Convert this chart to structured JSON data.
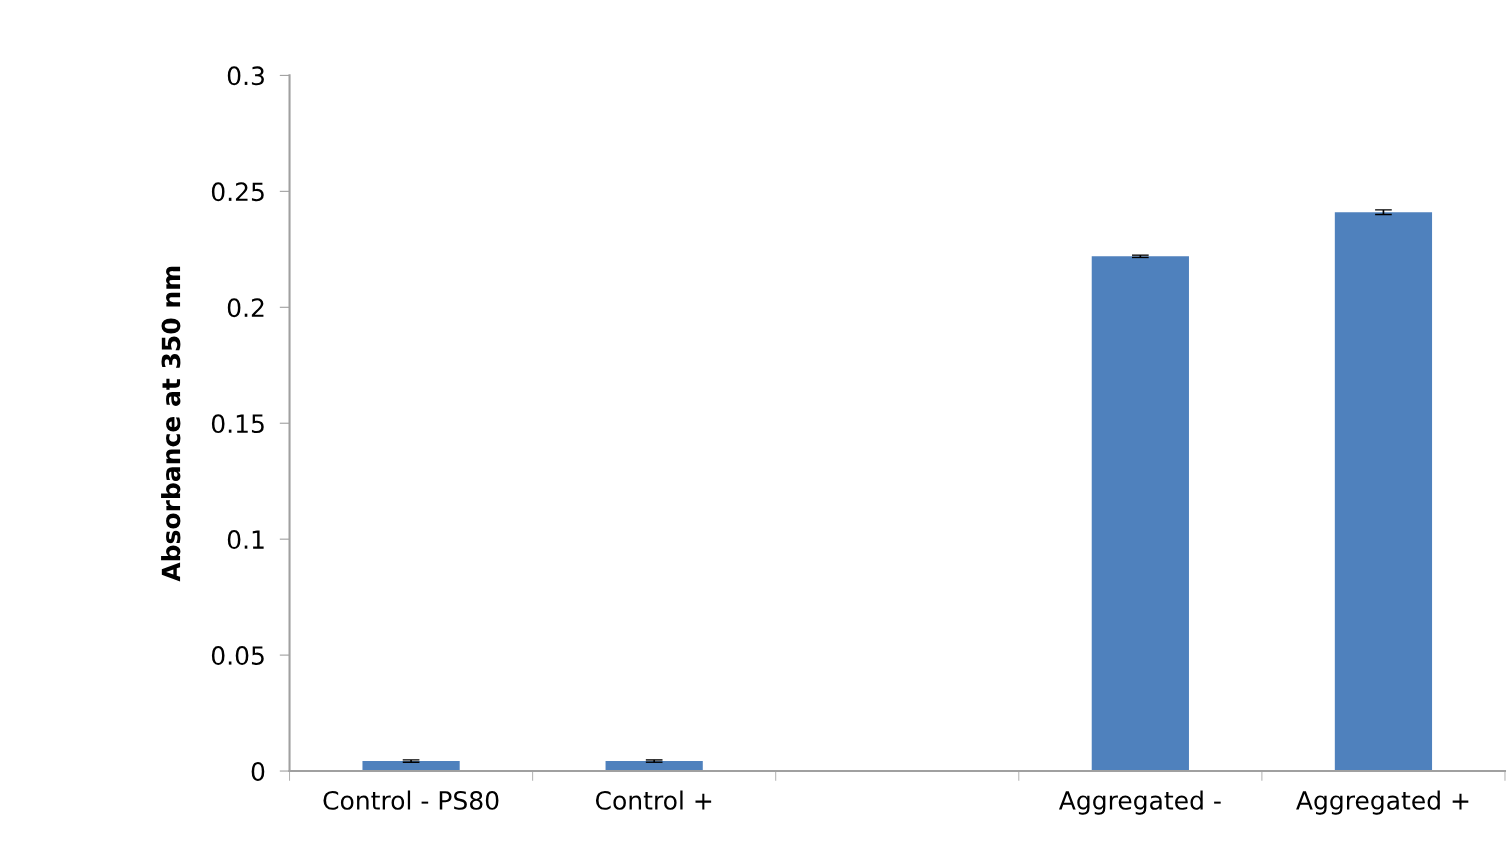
{
  "chart_data": {
    "type": "bar",
    "ylabel": "Absorbance at 350 nm",
    "categories": [
      "Control - PS80",
      "Control +",
      null,
      "Aggregated -",
      "Aggregated +"
    ],
    "values": [
      0.0043,
      0.0043,
      null,
      0.222,
      0.241
    ],
    "errors": [
      0.0005,
      0.0005,
      null,
      0.0005,
      0.001
    ],
    "color": "#4f81bd",
    "ylim": [
      0,
      0.3
    ],
    "yticks": [
      {
        "value": 0,
        "label": "0"
      },
      0.05,
      0.1,
      0.15,
      0.2,
      0.25,
      0.3
    ],
    "grid": false,
    "legend": false
  }
}
